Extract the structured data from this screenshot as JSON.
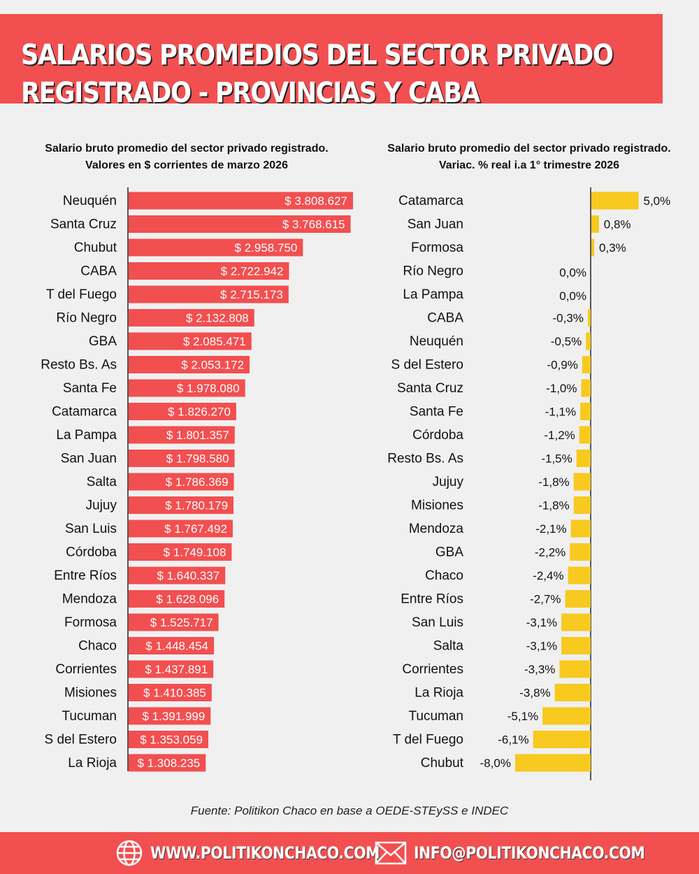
{
  "header": {
    "line1": "SALARIOS PROMEDIOS DEL SECTOR PRIVADO",
    "line2": "REGISTRADO - PROVINCIAS Y CABA"
  },
  "colors": {
    "accent": "#f24f50",
    "bar_right": "#f8c91e",
    "background": "#f0f0f0"
  },
  "chart_data": [
    {
      "type": "bar",
      "orientation": "horizontal",
      "title": "Salario bruto promedio del sector privado registrado.",
      "subtitle": "Valores en $ corrientes de marzo 2026",
      "categories": [
        "Neuquén",
        "Santa Cruz",
        "Chubut",
        "CABA",
        "T del Fuego",
        "Río Negro",
        "GBA",
        "Resto Bs. As",
        "Santa Fe",
        "Catamarca",
        "La Pampa",
        "San Juan",
        "Salta",
        "Jujuy",
        "San Luis",
        "Córdoba",
        "Entre Ríos",
        "Mendoza",
        "Formosa",
        "Chaco",
        "Corrientes",
        "Misiones",
        "Tucuman",
        "S del Estero",
        "La Rioja"
      ],
      "values": [
        3808627,
        3768615,
        2958750,
        2722942,
        2715173,
        2132808,
        2085471,
        2053172,
        1978080,
        1826270,
        1801357,
        1798580,
        1786369,
        1780179,
        1767492,
        1749108,
        1640337,
        1628096,
        1525717,
        1448454,
        1437891,
        1410385,
        1391999,
        1353059,
        1308235
      ],
      "labels": [
        "$ 3.808.627",
        "$ 3.768.615",
        "$ 2.958.750",
        "$ 2.722.942",
        "$ 2.715.173",
        "$ 2.132.808",
        "$ 2.085.471",
        "$ 2.053.172",
        "$ 1.978.080",
        "$ 1.826.270",
        "$ 1.801.357",
        "$ 1.798.580",
        "$ 1.786.369",
        "$ 1.780.179",
        "$ 1.767.492",
        "$ 1.749.108",
        "$ 1.640.337",
        "$ 1.628.096",
        "$ 1.525.717",
        "$ 1.448.454",
        "$ 1.437.891",
        "$ 1.410.385",
        "$ 1.391.999",
        "$ 1.353.059",
        "$ 1.308.235"
      ],
      "color": "#f24f50"
    },
    {
      "type": "bar",
      "orientation": "horizontal",
      "title": "Salario bruto promedio del sector privado registrado.",
      "subtitle": "Variac. % real i.a 1° trimestre 2026",
      "categories": [
        "Catamarca",
        "San Juan",
        "Formosa",
        "Río Negro",
        "La Pampa",
        "CABA",
        "Neuquén",
        "S del Estero",
        "Santa Cruz",
        "Santa Fe",
        "Córdoba",
        "Resto Bs. As",
        "Jujuy",
        "Misiones",
        "Mendoza",
        "GBA",
        "Chaco",
        "Entre Ríos",
        "San Luis",
        "Salta",
        "Corrientes",
        "La Rioja",
        "Tucuman",
        "T del Fuego",
        "Chubut"
      ],
      "values": [
        5.0,
        0.8,
        0.3,
        0.0,
        0.0,
        -0.3,
        -0.5,
        -0.9,
        -1.0,
        -1.1,
        -1.2,
        -1.5,
        -1.8,
        -1.8,
        -2.1,
        -2.2,
        -2.4,
        -2.7,
        -3.1,
        -3.1,
        -3.3,
        -3.8,
        -5.1,
        -6.1,
        -8.0
      ],
      "labels": [
        "5,0%",
        "0,8%",
        "0,3%",
        "0,0%",
        "0,0%",
        "-0,3%",
        "-0,5%",
        "-0,9%",
        "-1,0%",
        "-1,1%",
        "-1,2%",
        "-1,5%",
        "-1,8%",
        "-1,8%",
        "-2,1%",
        "-2,2%",
        "-2,4%",
        "-2,7%",
        "-3,1%",
        "-3,1%",
        "-3,3%",
        "-3,8%",
        "-5,1%",
        "-6,1%",
        "-8,0%"
      ],
      "color": "#f8c91e"
    }
  ],
  "source": "Fuente: Politikon Chaco en base a OEDE-STEySS e INDEC",
  "footer": {
    "web": "WWW.POLITIKONCHACO.COM",
    "email": "INFO@POLITIKONCHACO.COM",
    "web_icon": "globe-icon",
    "email_icon": "envelope-icon"
  }
}
